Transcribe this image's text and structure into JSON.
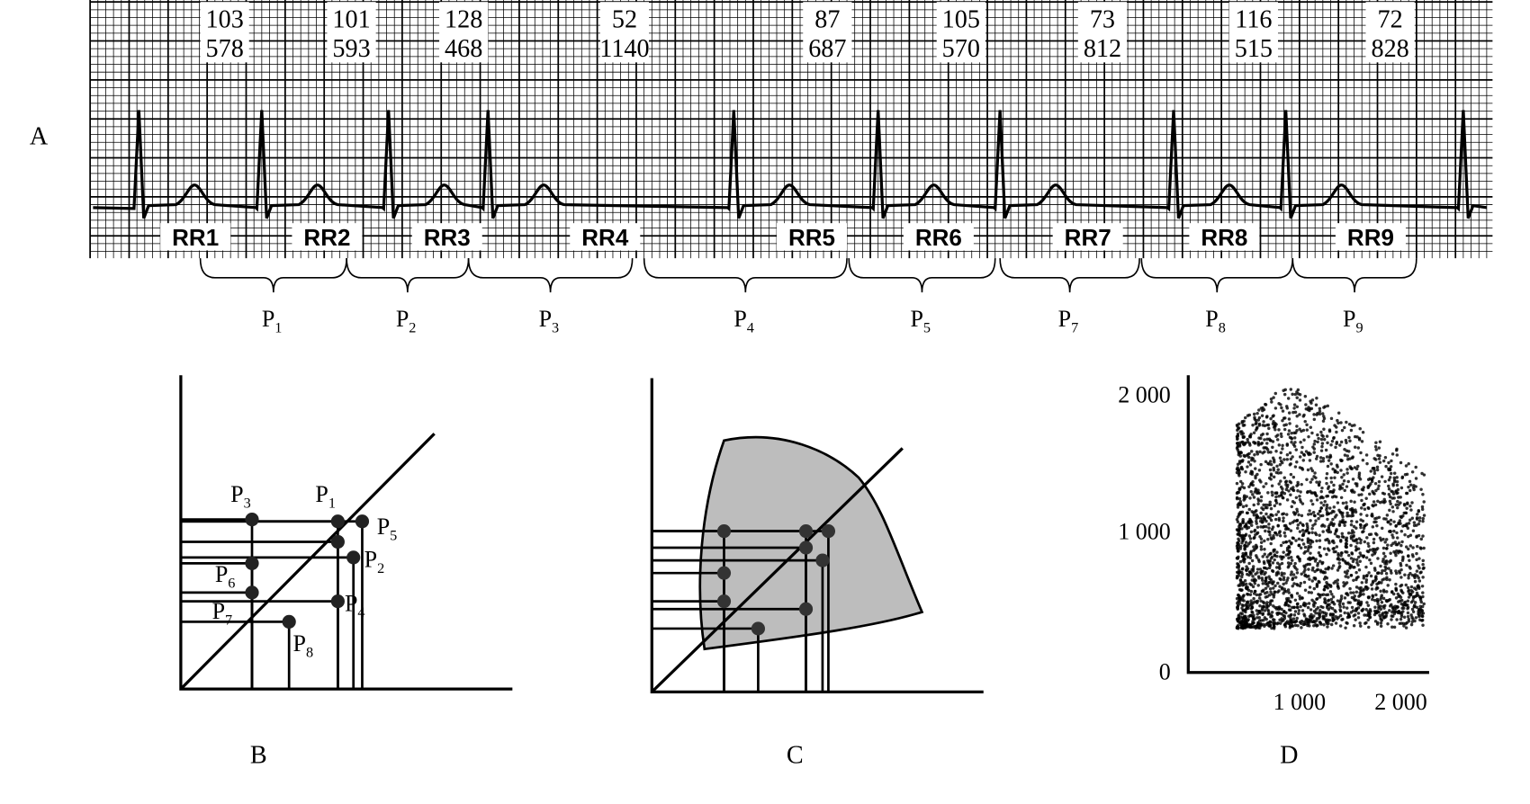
{
  "panels": {
    "a": {
      "label": "A",
      "intervals": [
        {
          "hr": 103,
          "rr": 578
        },
        {
          "hr": 101,
          "rr": 593
        },
        {
          "hr": 128,
          "rr": 468
        },
        {
          "hr": 52,
          "rr": 1140
        },
        {
          "hr": 87,
          "rr": 687
        },
        {
          "hr": 105,
          "rr": 570
        },
        {
          "hr": 73,
          "rr": 812
        },
        {
          "hr": 116,
          "rr": 515
        },
        {
          "hr": 72,
          "rr": 828
        }
      ],
      "rr_labels": [
        "RR1",
        "RR2",
        "RR3",
        "RR4",
        "RR5",
        "RR6",
        "RR7",
        "RR8",
        "RR9"
      ],
      "points": [
        {
          "base": "P",
          "sub": "1"
        },
        {
          "base": "P",
          "sub": "2"
        },
        {
          "base": "P",
          "sub": "3"
        },
        {
          "base": "P",
          "sub": "4"
        },
        {
          "base": "P",
          "sub": "5"
        },
        {
          "base": "P",
          "sub": "7"
        },
        {
          "base": "P",
          "sub": "8"
        },
        {
          "base": "P",
          "sub": "9"
        }
      ]
    },
    "b": {
      "label": "B",
      "points": [
        {
          "base": "P",
          "sub": "3"
        },
        {
          "base": "P",
          "sub": "1"
        },
        {
          "base": "P",
          "sub": "5"
        },
        {
          "base": "P",
          "sub": "2"
        },
        {
          "base": "P",
          "sub": "6"
        },
        {
          "base": "P",
          "sub": "4"
        },
        {
          "base": "P",
          "sub": "7"
        },
        {
          "base": "P",
          "sub": "8"
        }
      ]
    },
    "c": {
      "label": "C"
    },
    "d": {
      "label": "D",
      "yticks": [
        "2 000",
        "1 000",
        "0"
      ],
      "xticks": [
        "1 000",
        "2 000"
      ]
    }
  }
}
